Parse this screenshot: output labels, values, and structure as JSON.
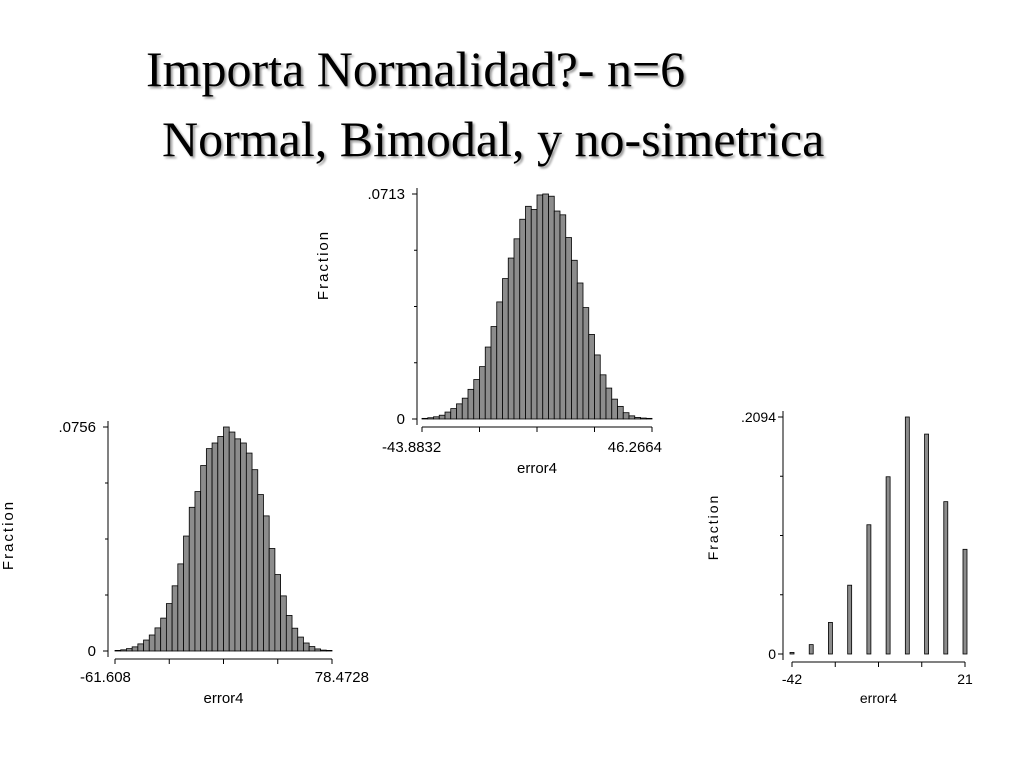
{
  "slide": {
    "title_line1": "Importa Normalidad?- n=6",
    "title_line2": "Normal, Bimodal, y no-simetrica"
  },
  "chart_data": [
    {
      "id": "chart-top",
      "type": "bar",
      "xlabel": "error4",
      "ylabel": "Fraction",
      "xlim": [
        -43.8832,
        46.2664
      ],
      "ylim": [
        0,
        0.0713
      ],
      "x_tick_labels": [
        "-43.8832",
        "46.2664"
      ],
      "y_tick_labels": [
        "0",
        ".0713"
      ],
      "values": [
        0.0002,
        0.0004,
        0.0007,
        0.0012,
        0.0022,
        0.0033,
        0.0048,
        0.0066,
        0.0094,
        0.0125,
        0.0166,
        0.0228,
        0.0293,
        0.0371,
        0.0445,
        0.051,
        0.0571,
        0.0633,
        0.0674,
        0.0664,
        0.071,
        0.0713,
        0.0706,
        0.0659,
        0.0647,
        0.0575,
        0.0503,
        0.0431,
        0.0353,
        0.0268,
        0.0203,
        0.014,
        0.0098,
        0.0063,
        0.004,
        0.002,
        0.001,
        0.0005,
        0.0003,
        0.0002
      ]
    },
    {
      "id": "chart-left",
      "type": "bar",
      "xlabel": "error4",
      "ylabel": "Fraction",
      "xlim": [
        -61.608,
        78.4728
      ],
      "ylim": [
        0,
        0.0756
      ],
      "x_tick_labels": [
        "-61.608",
        "78.4728"
      ],
      "y_tick_labels": [
        "0",
        ".0756"
      ],
      "values": [
        0.0002,
        0.0004,
        0.0008,
        0.0014,
        0.0024,
        0.0037,
        0.0054,
        0.0078,
        0.0111,
        0.016,
        0.022,
        0.0294,
        0.0388,
        0.0485,
        0.0538,
        0.0626,
        0.0683,
        0.0702,
        0.0724,
        0.0756,
        0.0739,
        0.0716,
        0.0702,
        0.0668,
        0.0612,
        0.0528,
        0.0456,
        0.0346,
        0.0258,
        0.0186,
        0.012,
        0.0077,
        0.0047,
        0.0027,
        0.0015,
        0.0007,
        0.0003,
        0.0002
      ]
    },
    {
      "id": "chart-right",
      "type": "bar",
      "xlabel": "error4",
      "ylabel": "Fraction",
      "xlim": [
        -42,
        21
      ],
      "ylim": [
        0,
        0.2094
      ],
      "x_tick_labels": [
        "-42",
        "21"
      ],
      "y_tick_labels": [
        "0",
        ".2094"
      ],
      "x": [
        -42,
        -35,
        -28,
        -21,
        -14,
        -7,
        0,
        7,
        14,
        21
      ],
      "values": [
        0.0014,
        0.0083,
        0.0279,
        0.0608,
        0.1142,
        0.1566,
        0.2094,
        0.1943,
        0.1346,
        0.0925
      ]
    }
  ]
}
